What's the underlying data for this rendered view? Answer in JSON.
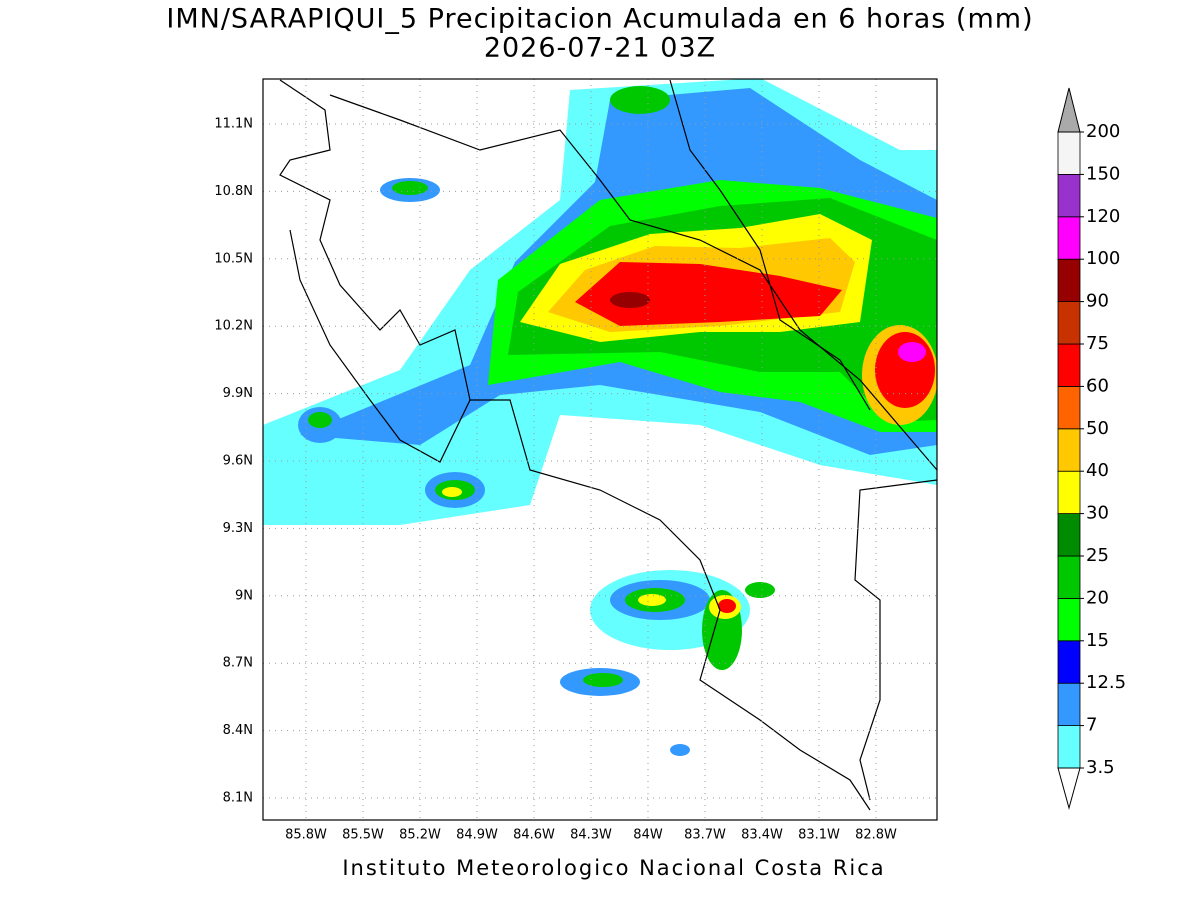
{
  "title": "IMN/SARAPIQUI_5 Precipitacion Acumulada en 6 horas (mm)",
  "subtitle": "2026-07-21 03Z",
  "map": {
    "lon_labels": [
      "85.8W",
      "85.5W",
      "85.2W",
      "84.9W",
      "84.6W",
      "84.3W",
      "84W",
      "83.7W",
      "83.4W",
      "83.1W",
      "82.8W"
    ],
    "lat_labels": [
      "11.1N",
      "10.8N",
      "10.5N",
      "10.2N",
      "9.9N",
      "9.6N",
      "9.3N",
      "9N",
      "8.7N",
      "8.4N",
      "8.1N"
    ]
  },
  "colorbar": {
    "levels": [
      3.5,
      7,
      12.5,
      15,
      20,
      25,
      30,
      40,
      50,
      60,
      75,
      90,
      100,
      120,
      150,
      200
    ],
    "colors": [
      "#66ffff",
      "#3399ff",
      "#0000ff",
      "#00ff00",
      "#00c800",
      "#008c00",
      "#ffff00",
      "#ffc800",
      "#ff6400",
      "#ff0000",
      "#c83200",
      "#960000",
      "#ff00ff",
      "#9932cc",
      "#f5f5f5"
    ],
    "under_color": "#ffffff",
    "over_color": "#aaaaaa"
  },
  "footer": "Instituto Meteorologico Nacional Costa Rica"
}
